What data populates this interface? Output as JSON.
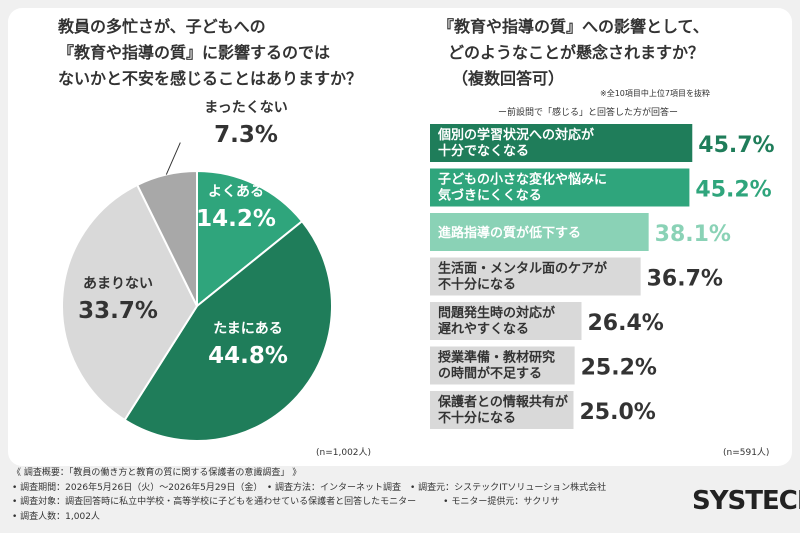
{
  "question_left": [
    "教員の多忙さが、子どもへの",
    "『教育や指導の質』に影響するのでは",
    "ないかと不安を感じることはありますか？"
  ],
  "question_right": [
    "『教育や指導の質』への影響として、",
    "どのようなことが懸念されますか？",
    "（複数回答可）"
  ],
  "note_top_right": "※全10項目中上位7項目を抜粋",
  "sub_note": "ー前設問で「感じる」と回答した方が回答ー",
  "n_left": "(n=1,002人)",
  "n_right": "(n=591人)",
  "colors": {
    "dark_green": "#1f7d5a",
    "mid_green": "#2fa57c",
    "light_green": "#8ad2b6",
    "light_gray": "#d9d9d9",
    "mid_gray": "#a8a8a8",
    "text": "#333333"
  },
  "chart_data": [
    {
      "type": "pie",
      "slices": [
        {
          "label": "よくある",
          "value": 14.2,
          "display": "14.2%",
          "color": "#2fa57c"
        },
        {
          "label": "たまにある",
          "value": 44.8,
          "display": "44.8%",
          "color": "#1f7d5a"
        },
        {
          "label": "あまりない",
          "value": 33.7,
          "display": "33.7%",
          "color": "#d9d9d9"
        },
        {
          "label": "まったくない",
          "value": 7.3,
          "display": "7.3%",
          "color": "#a8a8a8"
        }
      ]
    },
    {
      "type": "bar",
      "orientation": "horizontal",
      "categories": [
        [
          "個別の学習状況への対応が",
          "十分でなくなる"
        ],
        [
          "子どもの小さな変化や悩みに",
          "気づきにくくなる"
        ],
        [
          "進路指導の質が低下する"
        ],
        [
          "生活面・メンタル面のケアが",
          "不十分になる"
        ],
        [
          "問題発生時の対応が",
          "遅れやすくなる"
        ],
        [
          "授業準備・教材研究",
          "の時間が不足する"
        ],
        [
          "保護者との情報共有が",
          "不十分になる"
        ]
      ],
      "values": [
        45.7,
        45.2,
        38.1,
        36.7,
        26.4,
        25.2,
        25.0
      ],
      "labels": [
        "45.7%",
        "45.2%",
        "38.1%",
        "36.7%",
        "26.4%",
        "25.2%",
        "25.0%"
      ],
      "colors": [
        "#1f7d5a",
        "#2fa57c",
        "#8ad2b6",
        "#d9d9d9",
        "#d9d9d9",
        "#d9d9d9",
        "#d9d9d9"
      ]
    }
  ],
  "footer": [
    "《 調査概要：「教員の働き方と教育の質に関する保護者の意識調査」 》",
    "• 調査期間：2026年5月26日（火）～2026年5月29日（金）　• 調査方法：インターネット調査　• 調査元：システックITソリューション株式会社",
    "• 調査対象：調査回答時に私立中学校・高等学校に子どもを通わせている保護者と回答したモニター　　　• モニター提供元：サクリサ",
    "• 調査人数：1,002人"
  ],
  "logo": "SYSTECH"
}
